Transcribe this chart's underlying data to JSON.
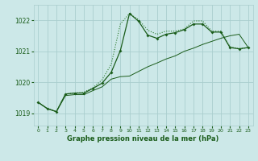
{
  "title": "Graphe pression niveau de la mer (hPa)",
  "bg_color": "#cce8e8",
  "grid_color": "#aacece",
  "line_color_dark": "#1a5c1a",
  "line_color_med": "#2a7a2a",
  "xlim": [
    -0.5,
    23.5
  ],
  "ylim": [
    1018.6,
    1022.5
  ],
  "yticks": [
    1019,
    1020,
    1021,
    1022
  ],
  "xticks": [
    0,
    1,
    2,
    3,
    4,
    5,
    6,
    7,
    8,
    9,
    10,
    11,
    12,
    13,
    14,
    15,
    16,
    17,
    18,
    19,
    20,
    21,
    22,
    23
  ],
  "series1_x": [
    0,
    1,
    2,
    3,
    4,
    5,
    6,
    7,
    8,
    9,
    10,
    11,
    12,
    13,
    14,
    15,
    16,
    17,
    18,
    19,
    20,
    21,
    22,
    23
  ],
  "series1_y": [
    1019.35,
    1019.15,
    1019.05,
    1019.62,
    1019.65,
    1019.68,
    1019.82,
    1020.08,
    1020.58,
    1021.88,
    1022.22,
    1022.02,
    1021.68,
    1021.55,
    1021.65,
    1021.65,
    1021.72,
    1021.98,
    1021.98,
    1021.65,
    1021.65,
    1021.15,
    1021.08,
    1021.12
  ],
  "series2_x": [
    0,
    1,
    2,
    3,
    4,
    5,
    6,
    7,
    8,
    9,
    10,
    11,
    12,
    13,
    14,
    15,
    16,
    17,
    18,
    19,
    20,
    21,
    22,
    23
  ],
  "series2_y": [
    1019.35,
    1019.15,
    1019.05,
    1019.62,
    1019.65,
    1019.65,
    1019.8,
    1019.97,
    1020.32,
    1021.02,
    1022.22,
    1021.97,
    1021.52,
    1021.42,
    1021.55,
    1021.6,
    1021.7,
    1021.88,
    1021.88,
    1021.62,
    1021.62,
    1021.12,
    1021.08,
    1021.12
  ],
  "series3_x": [
    0,
    1,
    2,
    3,
    4,
    5,
    6,
    7,
    8,
    9,
    10,
    11,
    12,
    13,
    14,
    15,
    16,
    17,
    18,
    19,
    20,
    21,
    22,
    23
  ],
  "series3_y": [
    1019.35,
    1019.15,
    1019.05,
    1019.57,
    1019.6,
    1019.6,
    1019.73,
    1019.85,
    1020.1,
    1020.18,
    1020.2,
    1020.35,
    1020.5,
    1020.62,
    1020.75,
    1020.85,
    1021.0,
    1021.1,
    1021.22,
    1021.32,
    1021.42,
    1021.5,
    1021.55,
    1021.12
  ]
}
